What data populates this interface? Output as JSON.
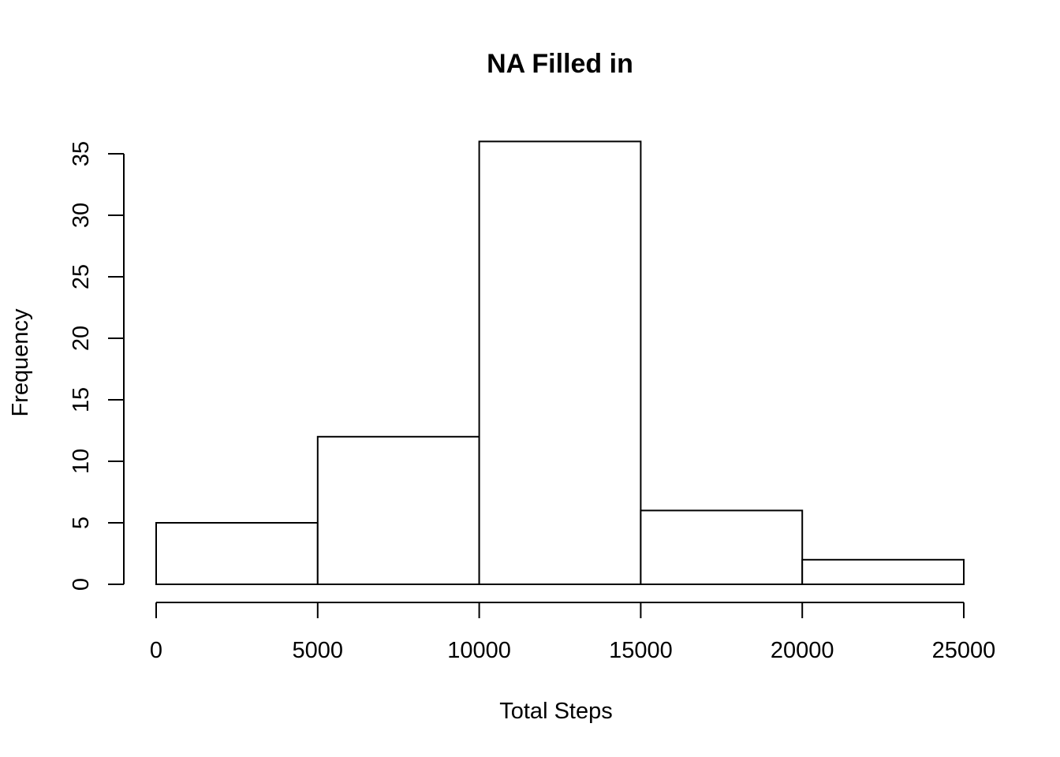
{
  "chart_data": {
    "type": "bar",
    "subtype": "histogram",
    "title": "NA Filled in",
    "xlabel": "Total Steps",
    "ylabel": "Frequency",
    "bins": [
      {
        "from": 0,
        "to": 5000,
        "count": 5
      },
      {
        "from": 5000,
        "to": 10000,
        "count": 12
      },
      {
        "from": 10000,
        "to": 15000,
        "count": 36
      },
      {
        "from": 15000,
        "to": 20000,
        "count": 6
      },
      {
        "from": 20000,
        "to": 25000,
        "count": 2
      }
    ],
    "x_ticks": [
      0,
      5000,
      10000,
      15000,
      20000,
      25000
    ],
    "x_tick_labels": [
      "0",
      "5000",
      "10000",
      "15000",
      "20000",
      "25000"
    ],
    "y_ticks": [
      0,
      5,
      10,
      15,
      20,
      25,
      30,
      35
    ],
    "y_tick_labels": [
      "0",
      "5",
      "10",
      "15",
      "20",
      "25",
      "30",
      "35"
    ],
    "xlim": [
      0,
      25000
    ],
    "ylim": [
      0,
      36
    ],
    "grid": false,
    "legend": false,
    "colors": {
      "bar_fill": "#ffffff",
      "bar_stroke": "#000000",
      "axis": "#000000"
    }
  }
}
